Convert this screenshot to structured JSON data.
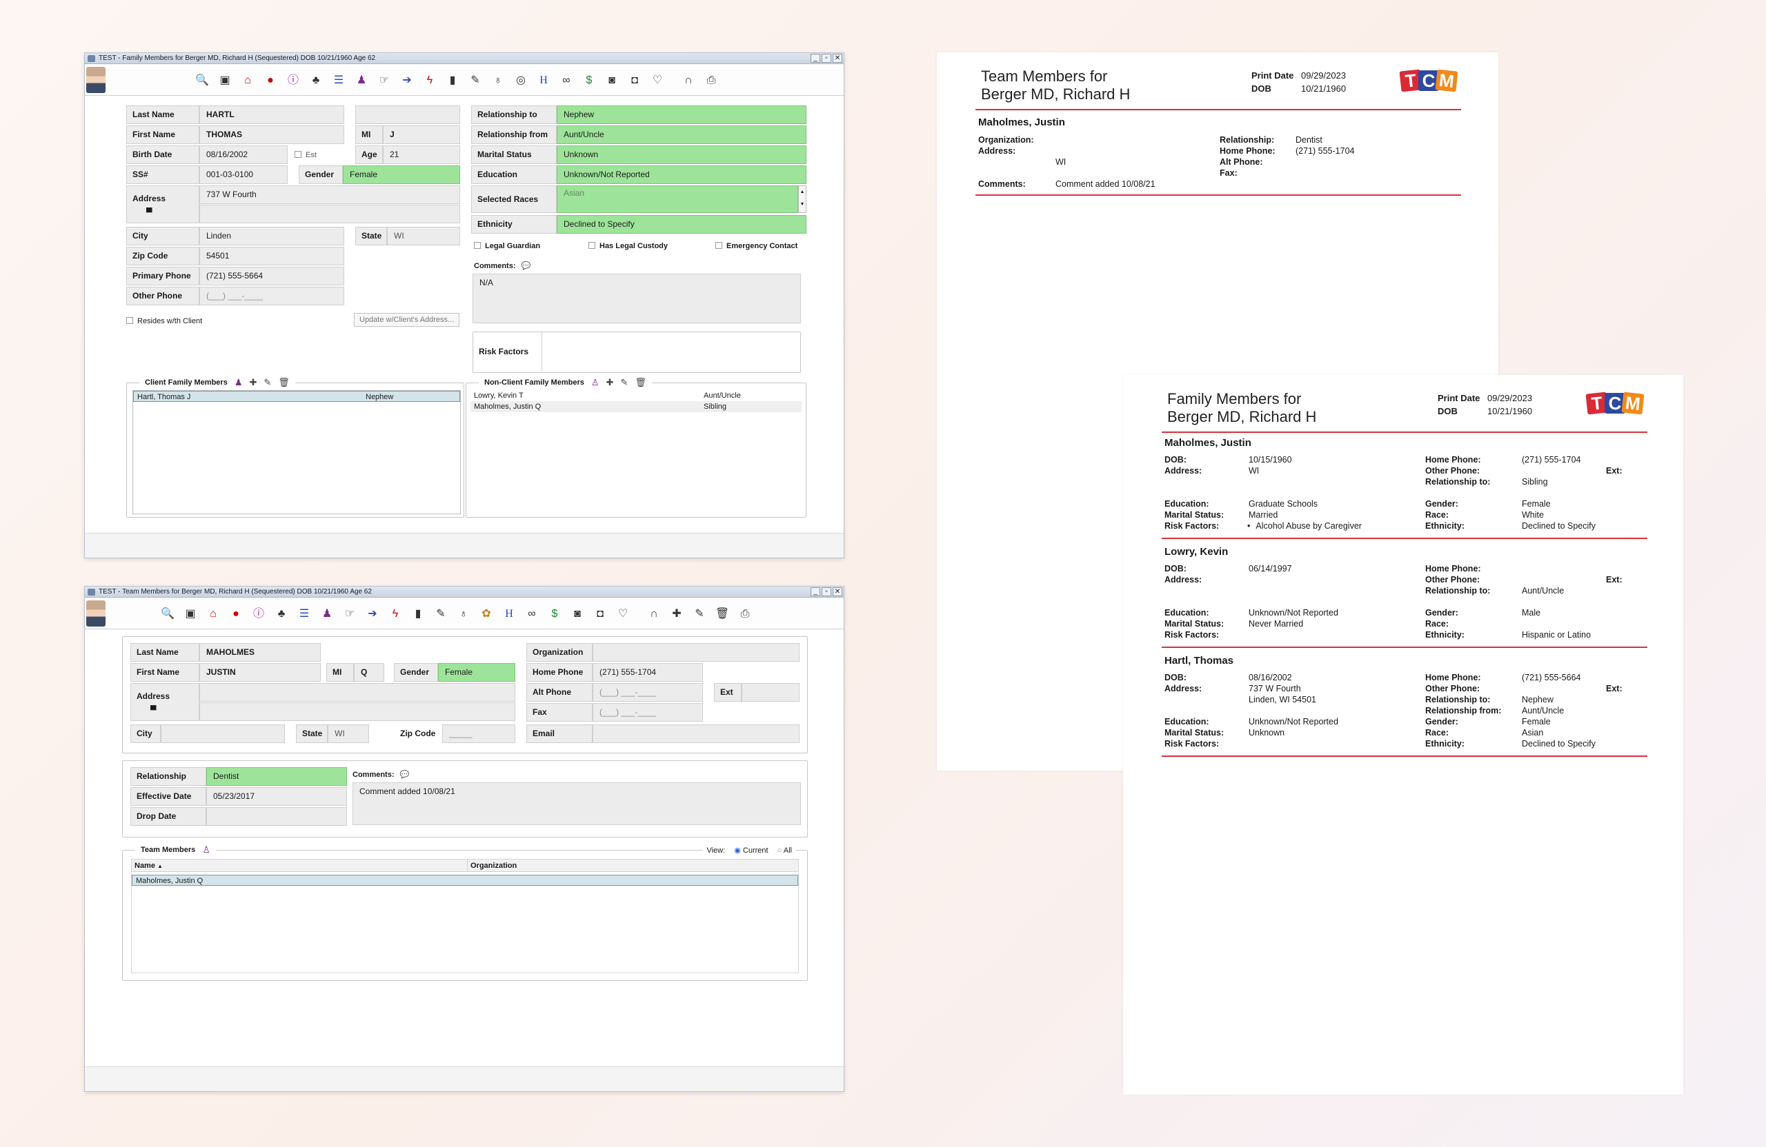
{
  "family_window": {
    "title": "TEST - Family Members for Berger MD, Richard H (Sequestered) DOB 10/21/1960 Age 62",
    "toolbar_icons": [
      "zoom-icon",
      "save-icon",
      "home-icon",
      "record-icon",
      "info-icon",
      "group-icon",
      "list-icon",
      "person-icon",
      "hand-icon",
      "login-icon",
      "flash-icon",
      "document-icon",
      "edit-icon",
      "stethoscope-icon",
      "eye-icon",
      "hospital-icon",
      "link-icon",
      "dollar-icon",
      "camera-icon",
      "inbox-icon",
      "heart-icon",
      "binoculars-icon",
      "print-icon"
    ],
    "fields": {
      "last_name_label": "Last Name",
      "last_name": "HARTL",
      "first_name_label": "First Name",
      "first_name": "THOMAS",
      "mi_label": "MI",
      "mi": "J",
      "birth_date_label": "Birth Date",
      "birth_date": "08/16/2002",
      "est_label": "Est",
      "age_label": "Age",
      "age": "21",
      "ssn_label": "SS#",
      "ssn": "001-03-0100",
      "gender_label": "Gender",
      "gender": "Female",
      "address_label": "Address",
      "address": "737 W Fourth",
      "city_label": "City",
      "city": "Linden",
      "state_label": "State",
      "state": "WI",
      "zip_label": "Zip Code",
      "zip": "54501",
      "primary_phone_label": "Primary Phone",
      "primary_phone": "(721) 555-5664",
      "other_phone_label": "Other Phone",
      "other_phone_placeholder": "(___) ___-____",
      "resides_label": "Resides w/th Client",
      "update_button": "Update w/Client's Address...",
      "relationship_to_label": "Relationship to",
      "relationship_to": "Nephew",
      "relationship_from_label": "Relationship from",
      "relationship_from": "Aunt/Uncle",
      "marital_label": "Marital Status",
      "marital": "Unknown",
      "education_label": "Education",
      "education": "Unknown/Not Reported",
      "races_label": "Selected Races",
      "races": "Asian",
      "ethnicity_label": "Ethnicity",
      "ethnicity": "Declined to Specify",
      "legal_guardian_label": "Legal Guardian",
      "legal_custody_label": "Has Legal Custody",
      "emergency_label": "Emergency Contact",
      "comments_label": "Comments:",
      "comments": "N/A",
      "risk_label": "Risk Factors"
    },
    "client_family": {
      "title": "Client Family Members",
      "rows": [
        {
          "name": "Hartl, Thomas J",
          "rel": "Nephew"
        }
      ]
    },
    "non_client_family": {
      "title": "Non-Client Family Members",
      "rows": [
        {
          "name": "Lowry, Kevin T",
          "rel": "Aunt/Uncle"
        },
        {
          "name": "Maholmes, Justin Q",
          "rel": "Sibling"
        }
      ]
    }
  },
  "team_window": {
    "title": "TEST - Team Members for Berger MD, Richard H (Sequestered) DOB 10/21/1960 Age 62",
    "toolbar_icons": [
      "zoom-icon",
      "save-icon",
      "home-icon",
      "record-icon",
      "info-icon",
      "group-icon",
      "list-icon",
      "person-icon",
      "hand-icon",
      "login-icon",
      "flash-icon",
      "document-icon",
      "edit-icon",
      "stethoscope-icon",
      "paw-icon",
      "hospital-icon",
      "link-icon",
      "dollar-icon",
      "camera-icon",
      "inbox-icon",
      "heart-icon",
      "binoculars-icon",
      "add-icon",
      "pencil-icon",
      "trash-icon",
      "print-icon"
    ],
    "fields": {
      "last_name_label": "Last Name",
      "last_name": "MAHOLMES",
      "first_name_label": "First Name",
      "first_name": "JUSTIN",
      "mi_label": "MI",
      "mi": "Q",
      "gender_label": "Gender",
      "gender": "Female",
      "address_label": "Address",
      "city_label": "City",
      "state_label": "State",
      "state": "WI",
      "zip_label": "Zip Code",
      "zip_placeholder": "_____",
      "org_label": "Organization",
      "home_phone_label": "Home Phone",
      "home_phone": "(271) 555-1704",
      "alt_phone_label": "Alt Phone",
      "alt_phone_placeholder": "(___) ___-____",
      "ext_label": "Ext",
      "fax_label": "Fax",
      "fax_placeholder": "(___) ___-____",
      "email_label": "Email",
      "relationship_label": "Relationship",
      "relationship": "Dentist",
      "effective_label": "Effective Date",
      "effective": "05/23/2017",
      "drop_label": "Drop Date",
      "comments_label": "Comments:",
      "comments": "Comment added 10/08/21"
    },
    "team_members": {
      "title": "Team Members",
      "view_label": "View:",
      "current_label": "Current",
      "all_label": "All",
      "col_name": "Name",
      "col_org": "Organization",
      "rows": [
        {
          "name": "Maholmes, Justin Q",
          "org": ""
        }
      ]
    }
  },
  "team_report": {
    "title_line1": "Team Members for",
    "title_line2": "Berger MD, Richard H",
    "print_date_label": "Print Date",
    "print_date": "09/29/2023",
    "dob_label": "DOB",
    "dob": "10/21/1960",
    "logo": [
      "T",
      "C",
      "M"
    ],
    "logo_colors": [
      "#d92b36",
      "#2d4aa0",
      "#f28a1a"
    ],
    "member_name": "Maholmes, Justin",
    "organization_label": "Organization:",
    "address_label": "Address:",
    "state": "WI",
    "comments_label": "Comments:",
    "comments": "Comment added 10/08/21",
    "relationship_label": "Relationship:",
    "relationship": "Dentist",
    "home_phone_label": "Home Phone:",
    "home_phone": "(271) 555-1704",
    "alt_phone_label": "Alt Phone:",
    "fax_label": "Fax:"
  },
  "family_report": {
    "title_line1": "Family Members for",
    "title_line2": "Berger MD, Richard H",
    "print_date_label": "Print Date",
    "print_date": "09/29/2023",
    "dob_label": "DOB",
    "dob": "10/21/1960",
    "logo": [
      "T",
      "C",
      "M"
    ],
    "members": [
      {
        "name": "Maholmes, Justin",
        "dob": "10/15/1960",
        "address": "WI",
        "address2": "",
        "education": "Graduate Schools",
        "marital": "Married",
        "risk": "Alcohol Abuse by Caregiver",
        "home_phone": "(271) 555-1704",
        "other_phone": "",
        "relationship_to": "Sibling",
        "relationship_from": "",
        "gender": "Female",
        "race": "White",
        "ethnicity": "Declined to Specify"
      },
      {
        "name": "Lowry, Kevin",
        "dob": "06/14/1997",
        "address": "",
        "address2": "",
        "education": "Unknown/Not Reported",
        "marital": "Never Married",
        "risk": "",
        "home_phone": "",
        "other_phone": "",
        "relationship_to": "Aunt/Uncle",
        "relationship_from": "",
        "gender": "Male",
        "race": "",
        "ethnicity": "Hispanic or Latino"
      },
      {
        "name": "Hartl, Thomas",
        "dob": "08/16/2002",
        "address": "737 W Fourth",
        "address2": "Linden, WI 54501",
        "education": "Unknown/Not Reported",
        "marital": "Unknown",
        "risk": "",
        "home_phone": "(721) 555-5664",
        "other_phone": "",
        "relationship_to": "Nephew",
        "relationship_from": "Aunt/Uncle",
        "gender": "Female",
        "race": "Asian",
        "ethnicity": "Declined to Specify"
      }
    ],
    "labels": {
      "dob": "DOB:",
      "address": "Address:",
      "education": "Education:",
      "marital": "Marital Status:",
      "risk": "Risk Factors:",
      "home_phone": "Home Phone:",
      "other_phone": "Other Phone:",
      "ext": "Ext:",
      "relationship_to": "Relationship to:",
      "relationship_from": "Relationship from:",
      "gender": "Gender:",
      "race": "Race:",
      "ethnicity": "Ethnicity:"
    }
  }
}
